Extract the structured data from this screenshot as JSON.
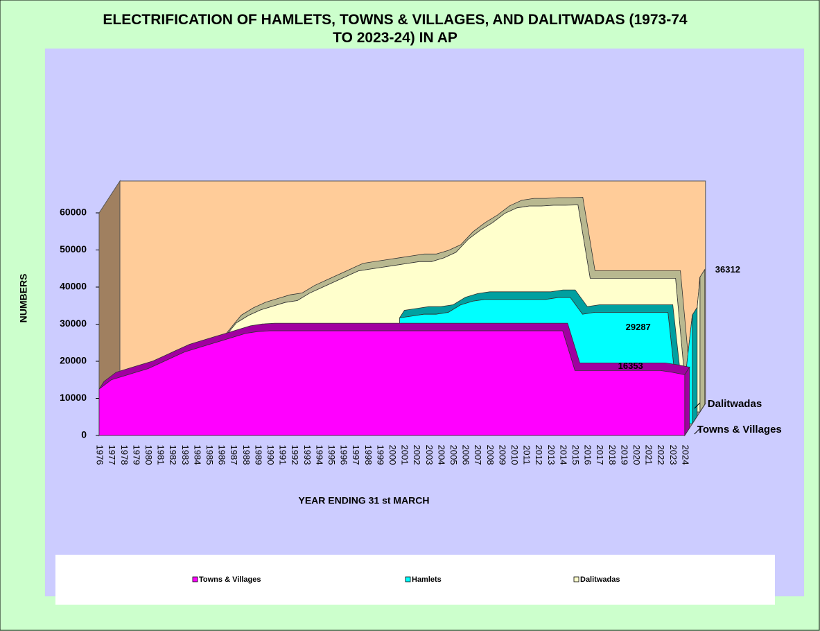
{
  "chart_data": {
    "type": "area3d",
    "title": "ELECTRIFICATION OF HAMLETS, TOWNS & VILLAGES, AND DALITWADAS (1973-74 TO 2023-24) IN AP",
    "x_label": "YEAR ENDING 31 st MARCH",
    "y_label": "NUMBERS",
    "categories": [
      "1976",
      "1977",
      "1978",
      "1979",
      "1980",
      "1981",
      "1982",
      "1983",
      "1984",
      "1985",
      "1986",
      "1987",
      "1988",
      "1989",
      "1990",
      "1991",
      "1992",
      "1993",
      "1994",
      "1995",
      "1996",
      "1997",
      "1998",
      "1999",
      "2000",
      "2001",
      "2002",
      "2003",
      "2004",
      "2005",
      "2006",
      "2007",
      "2008",
      "2009",
      "2010",
      "2011",
      "2012",
      "2013",
      "2014",
      "2015",
      "2016",
      "2017",
      "2018",
      "2019",
      "2020",
      "2021",
      "2022",
      "2023",
      "2024"
    ],
    "series": [
      {
        "name": "Towns & Villages",
        "color": "#ff00ff",
        "values": [
          12500,
          15000,
          16000,
          17000,
          18000,
          19500,
          21000,
          22500,
          23500,
          24500,
          25500,
          26500,
          27500,
          28000,
          28200,
          28200,
          28200,
          28200,
          28200,
          28200,
          28200,
          28200,
          28200,
          28200,
          28200,
          28200,
          28200,
          28200,
          28200,
          28200,
          28200,
          28200,
          28200,
          28200,
          28200,
          28200,
          28200,
          28200,
          28200,
          17500,
          17500,
          17500,
          17500,
          17500,
          17500,
          17500,
          17500,
          17000,
          16353
        ]
      },
      {
        "name": "Hamlets",
        "color": "#00ffff",
        "values": [
          null,
          null,
          null,
          null,
          null,
          null,
          null,
          null,
          null,
          null,
          null,
          null,
          null,
          null,
          null,
          null,
          null,
          null,
          null,
          null,
          null,
          null,
          null,
          null,
          28500,
          29000,
          29500,
          29500,
          30000,
          32000,
          33000,
          33500,
          33500,
          33500,
          33500,
          33500,
          33500,
          34000,
          34000,
          29500,
          30000,
          30000,
          30000,
          30000,
          30000,
          30000,
          30000,
          0,
          29287
        ]
      },
      {
        "name": "Dalitwadas",
        "color": "#ffffcc",
        "values": [
          8000,
          9000,
          10000,
          10500,
          12000,
          13500,
          14000,
          15000,
          16000,
          20000,
          24000,
          26000,
          27500,
          28500,
          29500,
          30000,
          32000,
          33500,
          35000,
          36500,
          38000,
          38500,
          39000,
          39500,
          40000,
          40500,
          40500,
          41500,
          43000,
          46500,
          49000,
          51000,
          53500,
          55000,
          55500,
          55500,
          55700,
          55700,
          55800,
          36000,
          36000,
          36000,
          36000,
          36000,
          36000,
          36000,
          36000,
          0,
          36312
        ]
      }
    ],
    "ylim": [
      0,
      60000
    ],
    "yticks": [
      0,
      10000,
      20000,
      30000,
      40000,
      50000,
      60000
    ],
    "data_labels": [
      {
        "series": 2,
        "index": 48
      },
      {
        "series": 1,
        "index": 48
      },
      {
        "series": 0,
        "index": 48
      }
    ]
  }
}
